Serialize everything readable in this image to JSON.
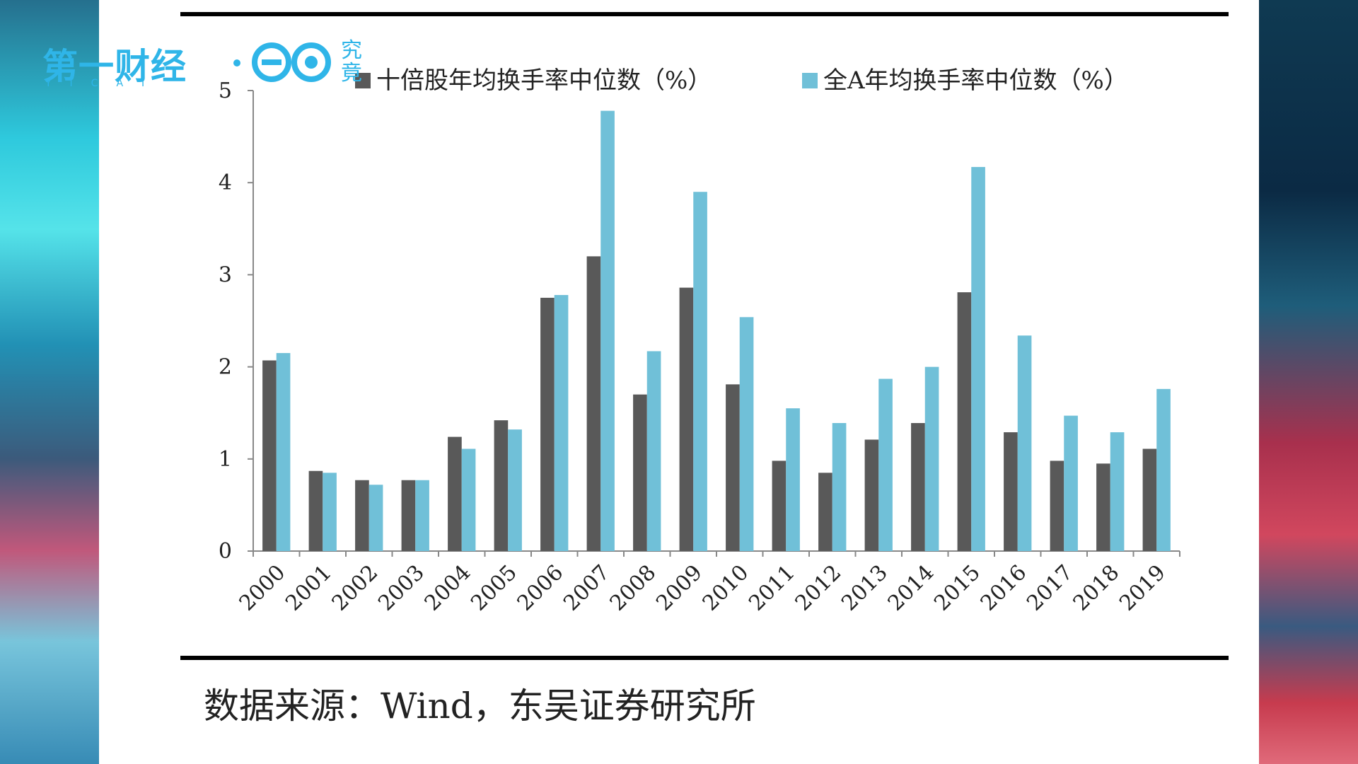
{
  "logo": {
    "brand": "第一财经",
    "sub": "YICAI",
    "jiu": "究竟",
    "color": "#2fb5e8"
  },
  "source_note": "数据来源：Wind，东吴证券研究所",
  "chart_data": {
    "type": "bar",
    "categories": [
      "2000",
      "2001",
      "2002",
      "2003",
      "2004",
      "2005",
      "2006",
      "2007",
      "2008",
      "2009",
      "2010",
      "2011",
      "2012",
      "2013",
      "2014",
      "2015",
      "2016",
      "2017",
      "2018",
      "2019"
    ],
    "series": [
      {
        "name": "十倍股年均换手率中位数（%）",
        "color": "#595959",
        "values": [
          2.07,
          0.87,
          0.77,
          0.77,
          1.24,
          1.42,
          2.75,
          3.2,
          1.7,
          2.86,
          1.81,
          0.98,
          0.85,
          1.21,
          1.39,
          2.81,
          1.29,
          0.98,
          0.95,
          1.11
        ]
      },
      {
        "name": "全A年均换手率中位数（%）",
        "color": "#70c0d8",
        "values": [
          2.15,
          0.85,
          0.72,
          0.77,
          1.11,
          1.32,
          2.78,
          4.78,
          2.17,
          3.9,
          2.54,
          1.55,
          1.39,
          1.87,
          2.0,
          4.17,
          2.34,
          1.47,
          1.29,
          1.76
        ]
      }
    ],
    "ylim": [
      0,
      5
    ],
    "yticks": [
      "0",
      "1",
      "2",
      "3",
      "4",
      "5"
    ],
    "grid": false,
    "legend": "top"
  }
}
